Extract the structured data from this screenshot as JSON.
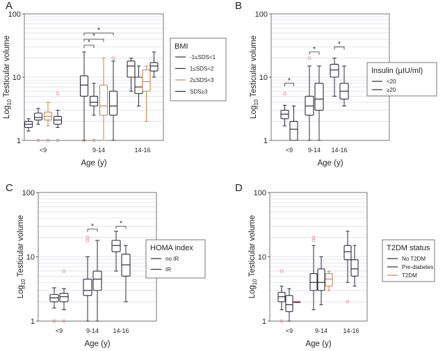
{
  "figure": {
    "y_axis_text": "Testicular volume",
    "y_axis_log_prefix": "Log",
    "y_axis_log_base": "10",
    "x_axis_label": "Age (y)",
    "colors": {
      "black": "#2a2a3a",
      "orange": "#c8864a",
      "pink": "#d49a9a",
      "grid": "#d9d9e6",
      "star": "#222222"
    }
  },
  "chart_data": [
    {
      "panel_letter": "A",
      "type": "box",
      "yscale": "log",
      "ylim": [
        1,
        100
      ],
      "yticks": [
        "1",
        "10",
        "100"
      ],
      "xlabel": "Age (y)",
      "ylabel": "Log10 Testicular volume",
      "grid": true,
      "legend": {
        "title": "BMI",
        "position": "right",
        "entries": [
          "-1≤SDS<1",
          "1≤SDS<2",
          "2≤SDS<3",
          "SDS≥3"
        ],
        "colors": [
          "#2a2a3a",
          "#2a2a3a",
          "#c8864a",
          "#2a2a3a"
        ]
      },
      "groups": [
        {
          "label": "<9",
          "boxes": [
            {
              "series": "-1≤SDS<1",
              "color": "#2a2a3a",
              "whislo": 1.4,
              "q1": 1.6,
              "med": 1.8,
              "q3": 2.0,
              "whishi": 2.2,
              "fliers": []
            },
            {
              "series": "1≤SDS<2",
              "color": "#2a2a3a",
              "whislo": 1.8,
              "q1": 2.1,
              "med": 2.3,
              "q3": 2.7,
              "whishi": 3.2,
              "fliers": [
                1.0
              ]
            },
            {
              "series": "2≤SDS<3",
              "color": "#c8864a",
              "whislo": 1.7,
              "q1": 2.1,
              "med": 2.4,
              "q3": 2.8,
              "whishi": 4.0,
              "fliers": [
                1.0
              ]
            },
            {
              "series": "SDS≥3",
              "color": "#2a2a3a",
              "whislo": 1.6,
              "q1": 1.8,
              "med": 2.1,
              "q3": 2.4,
              "whishi": 3.0,
              "fliers": [
                5.5,
                1.0
              ]
            }
          ]
        },
        {
          "label": "9-14",
          "boxes": [
            {
              "series": "-1≤SDS<1",
              "color": "#2a2a3a",
              "whislo": 1.0,
              "q1": 5.0,
              "med": 7.5,
              "q3": 10.5,
              "whishi": 25.0,
              "fliers": [
                1.0
              ]
            },
            {
              "series": "1≤SDS<2",
              "color": "#2a2a3a",
              "whislo": 2.5,
              "q1": 3.5,
              "med": 4.0,
              "q3": 5.0,
              "whishi": 8.0,
              "fliers": [
                1.0
              ]
            },
            {
              "series": "2≤SDS<3",
              "color": "#c8864a",
              "whislo": 1.0,
              "q1": 2.5,
              "med": 3.5,
              "q3": 7.5,
              "whishi": 20.0,
              "fliers": []
            },
            {
              "series": "SDS≥3",
              "color": "#2a2a3a",
              "whislo": 1.0,
              "q1": 2.5,
              "med": 3.5,
              "q3": 6.0,
              "whishi": 18.0,
              "fliers": [
                20.0
              ]
            }
          ]
        },
        {
          "label": "14-16",
          "boxes": [
            {
              "series": "-1≤SDS<1",
              "color": "#2a2a3a",
              "whislo": 6.0,
              "q1": 10.0,
              "med": 15.0,
              "q3": 18.0,
              "whishi": 20.0,
              "fliers": []
            },
            {
              "series": "1≤SDS<2",
              "color": "#2a2a3a",
              "whislo": 3.5,
              "q1": 5.5,
              "med": 7.0,
              "q3": 10.0,
              "whishi": 15.0,
              "fliers": []
            },
            {
              "series": "2≤SDS<3",
              "color": "#c8864a",
              "whislo": 2.0,
              "q1": 6.0,
              "med": 8.5,
              "q3": 13.0,
              "whishi": 15.0,
              "fliers": []
            },
            {
              "series": "SDS≥3",
              "color": "#2a2a3a",
              "whislo": 10.0,
              "q1": 12.5,
              "med": 15.0,
              "q3": 17.0,
              "whishi": 25.0,
              "fliers": []
            }
          ]
        }
      ],
      "significance": [
        {
          "group": "9-14",
          "from": 0,
          "to": 3,
          "level": 50,
          "label": "*"
        },
        {
          "group": "9-14",
          "from": 0,
          "to": 2,
          "level": 40,
          "label": "*"
        },
        {
          "group": "9-14",
          "from": 0,
          "to": 1,
          "level": 32,
          "label": "*"
        }
      ]
    },
    {
      "panel_letter": "B",
      "type": "box",
      "yscale": "log",
      "ylim": [
        1,
        100
      ],
      "yticks": [
        "1",
        "10",
        "100"
      ],
      "xlabel": "Age (y)",
      "ylabel": "Log10 Testicular volume",
      "grid": true,
      "legend": {
        "title": "Insulin (µIU/ml)",
        "position": "right",
        "entries": [
          "<20",
          "≥20"
        ],
        "colors": [
          "#2a2a3a",
          "#2a2a3a"
        ]
      },
      "groups": [
        {
          "label": "<9",
          "boxes": [
            {
              "series": "<20",
              "color": "#2a2a3a",
              "whislo": 1.7,
              "q1": 2.2,
              "med": 2.6,
              "q3": 3.0,
              "whishi": 3.6,
              "fliers": [
                5.5
              ]
            },
            {
              "series": "≥20",
              "color": "#2a2a3a",
              "whislo": 1.0,
              "q1": 1.0,
              "med": 1.5,
              "q3": 2.0,
              "whishi": 3.5,
              "fliers": []
            }
          ]
        },
        {
          "label": "9-14",
          "boxes": [
            {
              "series": "<20",
              "color": "#2a2a3a",
              "whislo": 1.0,
              "q1": 2.5,
              "med": 3.5,
              "q3": 5.0,
              "whishi": 15.0,
              "fliers": [
                20.0
              ]
            },
            {
              "series": "≥20",
              "color": "#2a2a3a",
              "whislo": 1.0,
              "q1": 3.0,
              "med": 4.5,
              "q3": 8.0,
              "whishi": 15.0,
              "fliers": []
            }
          ]
        },
        {
          "label": "14-16",
          "boxes": [
            {
              "series": "<20",
              "color": "#2a2a3a",
              "whislo": 5.0,
              "q1": 10.0,
              "med": 13.0,
              "q3": 16.0,
              "whishi": 20.0,
              "fliers": []
            },
            {
              "series": "≥20",
              "color": "#2a2a3a",
              "whislo": 3.5,
              "q1": 4.5,
              "med": 6.0,
              "q3": 8.0,
              "whishi": 15.0,
              "fliers": []
            }
          ]
        }
      ],
      "significance": [
        {
          "group": "<9",
          "from": 0,
          "to": 1,
          "level": 8,
          "label": "*"
        },
        {
          "group": "9-14",
          "from": 0,
          "to": 1,
          "level": 25,
          "label": "*"
        },
        {
          "group": "14-16",
          "from": 0,
          "to": 1,
          "level": 30,
          "label": "*"
        }
      ]
    },
    {
      "panel_letter": "C",
      "type": "box",
      "yscale": "log",
      "ylim": [
        1,
        100
      ],
      "yticks": [
        "1",
        "10",
        "100"
      ],
      "xlabel": "Age (y)",
      "ylabel": "Log10 Testicular volume",
      "grid": true,
      "legend": {
        "title": "HOMA index",
        "position": "right",
        "entries": [
          "no IR",
          "IR"
        ],
        "colors": [
          "#2a2a3a",
          "#2a2a3a"
        ]
      },
      "groups": [
        {
          "label": "<9",
          "boxes": [
            {
              "series": "no IR",
              "color": "#2a2a3a",
              "whislo": 1.6,
              "q1": 2.0,
              "med": 2.3,
              "q3": 2.6,
              "whishi": 3.3,
              "fliers": [
                1.0
              ]
            },
            {
              "series": "IR",
              "color": "#2a2a3a",
              "whislo": 1.5,
              "q1": 2.0,
              "med": 2.4,
              "q3": 2.7,
              "whishi": 3.2,
              "fliers": [
                6.0,
                1.0
              ]
            }
          ]
        },
        {
          "label": "9-14",
          "boxes": [
            {
              "series": "no IR",
              "color": "#2a2a3a",
              "whislo": 1.0,
              "q1": 2.5,
              "med": 3.0,
              "q3": 4.5,
              "whishi": 10.0,
              "fliers": [
                20.0,
                18.0
              ]
            },
            {
              "series": "IR",
              "color": "#2a2a3a",
              "whislo": 1.0,
              "q1": 3.0,
              "med": 4.5,
              "q3": 6.0,
              "whishi": 18.0,
              "fliers": []
            }
          ]
        },
        {
          "label": "14-16",
          "boxes": [
            {
              "series": "no IR",
              "color": "#2a2a3a",
              "whislo": 6.0,
              "q1": 12.0,
              "med": 15.0,
              "q3": 18.0,
              "whishi": 25.0,
              "fliers": []
            },
            {
              "series": "IR",
              "color": "#2a2a3a",
              "whislo": 2.0,
              "q1": 5.0,
              "med": 7.5,
              "q3": 11.0,
              "whishi": 15.0,
              "fliers": []
            }
          ]
        }
      ],
      "significance": [
        {
          "group": "9-14",
          "from": 0,
          "to": 1,
          "level": 27,
          "label": "*"
        },
        {
          "group": "14-16",
          "from": 0,
          "to": 1,
          "level": 30,
          "label": "*"
        }
      ]
    },
    {
      "panel_letter": "D",
      "type": "box",
      "yscale": "log",
      "ylim": [
        1,
        100
      ],
      "yticks": [
        "1",
        "10",
        "100"
      ],
      "xlabel": "Age (y)",
      "ylabel": "Log10 Testicular volume",
      "grid": true,
      "legend": {
        "title": "T2DM status",
        "position": "right",
        "entries": [
          "No T2DM",
          "Pre-diabetes",
          "T2DM"
        ],
        "colors": [
          "#2a2a3a",
          "#2a2a3a",
          "#c8864a"
        ]
      },
      "groups": [
        {
          "label": "<9",
          "boxes": [
            {
              "series": "No T2DM",
              "color": "#2a2a3a",
              "whislo": 1.5,
              "q1": 2.0,
              "med": 2.4,
              "q3": 2.8,
              "whishi": 3.5,
              "fliers": [
                6.0,
                1.0
              ]
            },
            {
              "series": "Pre-diabetes",
              "color": "#2a2a3a",
              "whislo": 1.0,
              "q1": 1.4,
              "med": 1.8,
              "q3": 2.5,
              "whishi": 3.2,
              "fliers": []
            },
            {
              "series": "T2DM",
              "color": "#8a2a4a",
              "whislo": 2.0,
              "q1": 2.0,
              "med": 2.0,
              "q3": 2.0,
              "whishi": 2.0,
              "fliers": []
            }
          ]
        },
        {
          "label": "9-14",
          "boxes": [
            {
              "series": "No T2DM",
              "color": "#2a2a3a",
              "whislo": 1.5,
              "q1": 3.0,
              "med": 4.0,
              "q3": 5.5,
              "whishi": 15.0,
              "fliers": [
                20.0,
                18.0
              ]
            },
            {
              "series": "Pre-diabetes",
              "color": "#2a2a3a",
              "whislo": 1.8,
              "q1": 3.0,
              "med": 4.0,
              "q3": 6.5,
              "whishi": 10.0,
              "fliers": []
            },
            {
              "series": "T2DM",
              "color": "#c8864a",
              "whislo": 3.0,
              "q1": 3.5,
              "med": 4.5,
              "q3": 5.5,
              "whishi": 6.0,
              "fliers": []
            }
          ]
        },
        {
          "label": "14-16",
          "boxes": [
            {
              "series": "No T2DM",
              "color": "#2a2a3a",
              "whislo": 4.0,
              "q1": 9.0,
              "med": 12.0,
              "q3": 15.0,
              "whishi": 25.0,
              "fliers": [
                2.0
              ]
            },
            {
              "series": "Pre-diabetes",
              "color": "#2a2a3a",
              "whislo": 3.5,
              "q1": 5.0,
              "med": 6.5,
              "q3": 9.0,
              "whishi": 15.0,
              "fliers": []
            }
          ]
        }
      ],
      "significance": []
    }
  ]
}
